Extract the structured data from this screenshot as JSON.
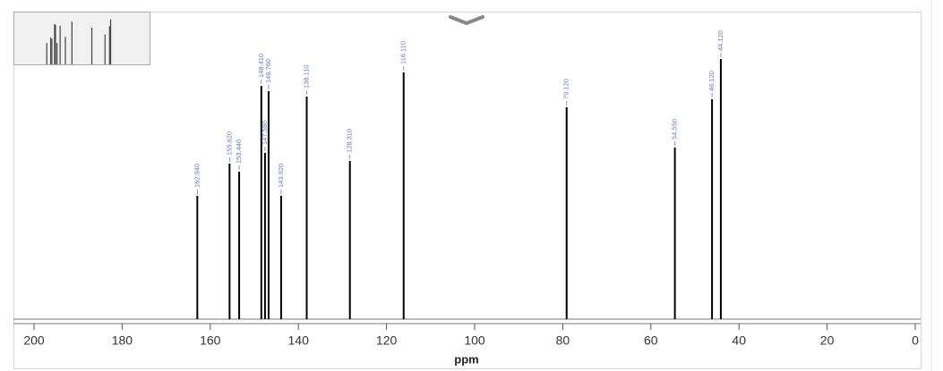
{
  "chart_data": {
    "type": "stick",
    "x": [
      162.94,
      155.62,
      153.44,
      148.41,
      147.58,
      146.76,
      143.92,
      138.11,
      128.31,
      116.11,
      79.12,
      54.55,
      46.12,
      44.12
    ],
    "x_labels": [
      "162.940",
      "155.620",
      "153.440",
      "148.410",
      "147.580",
      "146.760",
      "143.920",
      "138.110",
      "128.310",
      "116.110",
      "79.120",
      "54.550",
      "46.120",
      "44.120"
    ],
    "values": [
      46,
      58,
      55,
      87,
      62,
      85,
      46,
      83,
      59,
      92,
      79,
      64,
      82,
      97
    ],
    "color": "#000000",
    "label_color": "#6a78c8",
    "xlim": [
      200,
      0
    ],
    "xticks": [
      200,
      180,
      160,
      140,
      120,
      100,
      80,
      60,
      40,
      20,
      0
    ],
    "ylim": [
      0,
      100
    ],
    "xlabel": "ppm"
  }
}
